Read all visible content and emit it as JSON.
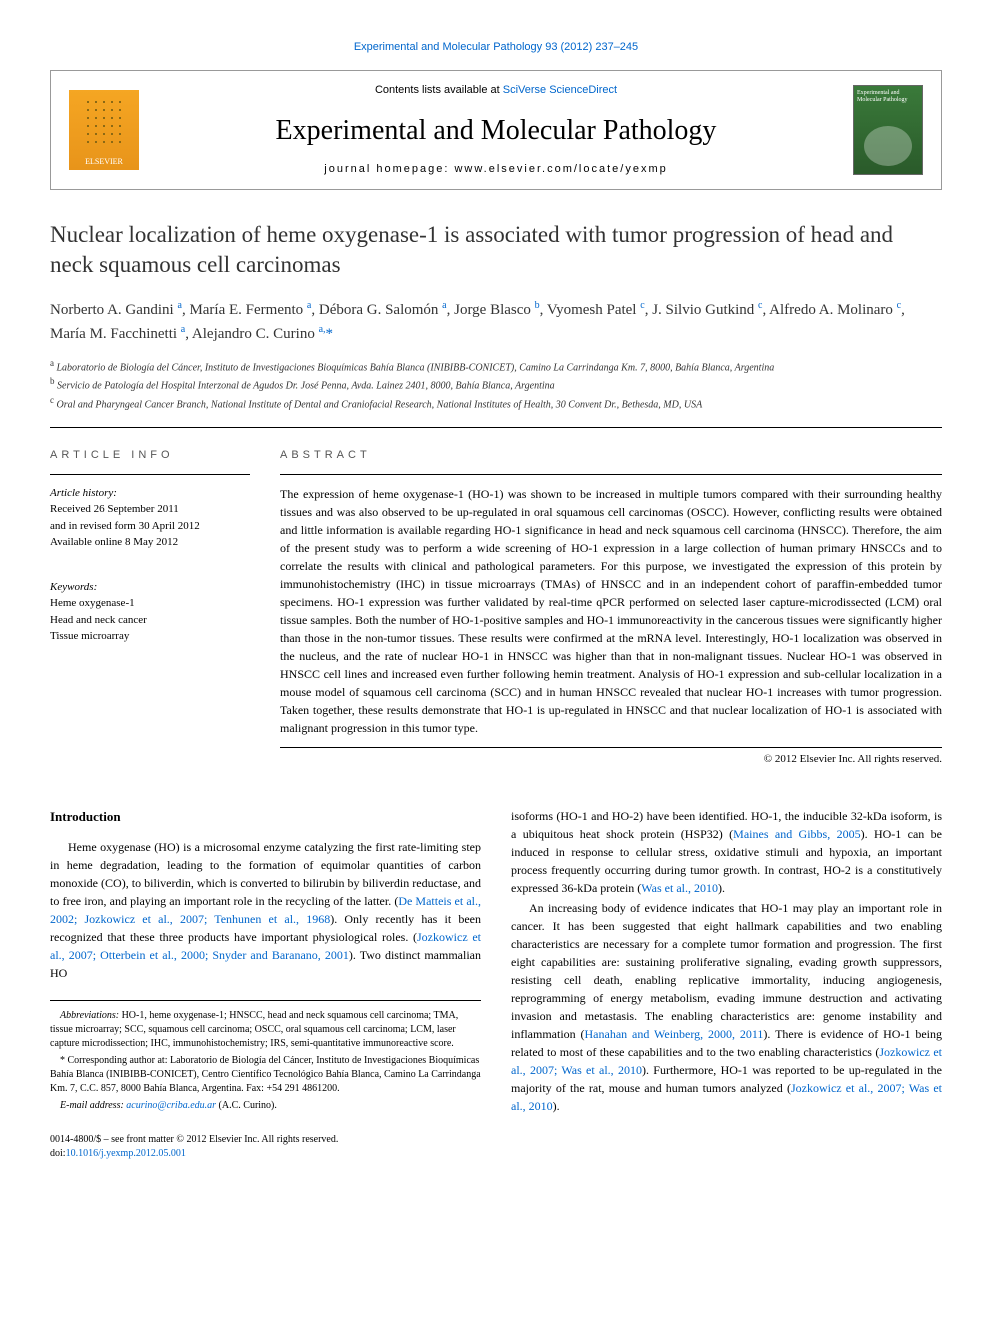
{
  "top_link": "Experimental and Molecular Pathology 93 (2012) 237–245",
  "header": {
    "contents_prefix": "Contents lists available at ",
    "contents_link": "SciVerse ScienceDirect",
    "journal_title": "Experimental and Molecular Pathology",
    "homepage_label": "journal homepage: ",
    "homepage_url": "www.elsevier.com/locate/yexmp",
    "elsevier_label": "ELSEVIER"
  },
  "article": {
    "title": "Nuclear localization of heme oxygenase-1 is associated with tumor progression of head and neck squamous cell carcinomas",
    "authors_html": "Norberto A. Gandini <sup>a</sup>, María E. Fermento <sup>a</sup>, Débora G. Salomón <sup>a</sup>, Jorge Blasco <sup>b</sup>, Vyomesh Patel <sup>c</sup>, J. Silvio Gutkind <sup>c</sup>, Alfredo A. Molinaro <sup>c</sup>, María M. Facchinetti <sup>a</sup>, Alejandro C. Curino <sup>a,</sup><span class='corr'>*</span>",
    "affiliations": [
      "a Laboratorio de Biología del Cáncer, Instituto de Investigaciones Bioquímicas Bahía Blanca (INIBIBB-CONICET), Camino La Carrindanga Km. 7, 8000, Bahía Blanca, Argentina",
      "b Servicio de Patología del Hospital Interzonal de Agudos Dr. José Penna, Avda. Lainez 2401, 8000, Bahía Blanca, Argentina",
      "c Oral and Pharyngeal Cancer Branch, National Institute of Dental and Craniofacial Research, National Institutes of Health, 30 Convent Dr., Bethesda, MD, USA"
    ]
  },
  "info": {
    "header": "article info",
    "history_label": "Article history:",
    "received": "Received 26 September 2011",
    "revised": "and in revised form 30 April 2012",
    "online": "Available online 8 May 2012",
    "keywords_label": "Keywords:",
    "keywords": [
      "Heme oxygenase-1",
      "Head and neck cancer",
      "Tissue microarray"
    ]
  },
  "abstract": {
    "header": "abstract",
    "text": "The expression of heme oxygenase-1 (HO-1) was shown to be increased in multiple tumors compared with their surrounding healthy tissues and was also observed to be up-regulated in oral squamous cell carcinomas (OSCC). However, conflicting results were obtained and little information is available regarding HO-1 significance in head and neck squamous cell carcinoma (HNSCC). Therefore, the aim of the present study was to perform a wide screening of HO-1 expression in a large collection of human primary HNSCCs and to correlate the results with clinical and pathological parameters. For this purpose, we investigated the expression of this protein by immunohistochemistry (IHC) in tissue microarrays (TMAs) of HNSCC and in an independent cohort of paraffin-embedded tumor specimens. HO-1 expression was further validated by real-time qPCR performed on selected laser capture-microdissected (LCM) oral tissue samples. Both the number of HO-1-positive samples and HO-1 immunoreactivity in the cancerous tissues were significantly higher than those in the non-tumor tissues. These results were confirmed at the mRNA level. Interestingly, HO-1 localization was observed in the nucleus, and the rate of nuclear HO-1 in HNSCC was higher than that in non-malignant tissues. Nuclear HO-1 was observed in HNSCC cell lines and increased even further following hemin treatment. Analysis of HO-1 expression and sub-cellular localization in a mouse model of squamous cell carcinoma (SCC) and in human HNSCC revealed that nuclear HO-1 increases with tumor progression. Taken together, these results demonstrate that HO-1 is up-regulated in HNSCC and that nuclear localization of HO-1 is associated with malignant progression in this tumor type.",
    "copyright": "© 2012 Elsevier Inc. All rights reserved."
  },
  "body": {
    "intro_heading": "Introduction",
    "col1_p1_pre": "Heme oxygenase (HO) is a microsomal enzyme catalyzing the first rate-limiting step in heme degradation, leading to the formation of equimolar quantities of carbon monoxide (CO), to biliverdin, which is converted to bilirubin by biliverdin reductase, and to free iron, and playing an important role in the recycling of the latter. (",
    "col1_p1_ref1": "De Matteis et al., 2002; Jozkowicz et al., 2007; Tenhunen et al., 1968",
    "col1_p1_mid": "). Only recently has it been recognized that these three products have important physiological roles. (",
    "col1_p1_ref2": "Jozkowicz et al., 2007; Otterbein et al., 2000; Snyder and Baranano, 2001",
    "col1_p1_post": "). Two distinct mammalian HO",
    "col2_p1_pre": "isoforms (HO-1 and HO-2) have been identified. HO-1, the inducible 32-kDa isoform, is a ubiquitous heat shock protein (HSP32) (",
    "col2_p1_ref1": "Maines and Gibbs, 2005",
    "col2_p1_mid": "). HO-1 can be induced in response to cellular stress, oxidative stimuli and hypoxia, an important process frequently occurring during tumor growth. In contrast, HO-2 is a constitutively expressed 36-kDa protein (",
    "col2_p1_ref2": "Was et al., 2010",
    "col2_p1_post": ").",
    "col2_p2_pre": "An increasing body of evidence indicates that HO-1 may play an important role in cancer. It has been suggested that eight hallmark capabilities and two enabling characteristics are necessary for a complete tumor formation and progression. The first eight capabilities are: sustaining proliferative signaling, evading growth suppressors, resisting cell death, enabling replicative immortality, inducing angiogenesis, reprogramming of energy metabolism, evading immune destruction and activating invasion and metastasis. The enabling characteristics are: genome instability and inflammation (",
    "col2_p2_ref1": "Hanahan and Weinberg, 2000, 2011",
    "col2_p2_mid": "). There is evidence of HO-1 being related to most of these capabilities and to the two enabling characteristics (",
    "col2_p2_ref2": "Jozkowicz et al., 2007; Was et al., 2010",
    "col2_p2_mid2": "). Furthermore, HO-1 was reported to be up-regulated in the majority of the rat, mouse and human tumors analyzed (",
    "col2_p2_ref3": "Jozkowicz et al., 2007; Was et al., 2010",
    "col2_p2_post": ")."
  },
  "footnotes": {
    "abbrev_label": "Abbreviations:",
    "abbrev_text": " HO-1, heme oxygenase-1; HNSCC, head and neck squamous cell carcinoma; TMA, tissue microarray; SCC, squamous cell carcinoma; OSCC, oral squamous cell carcinoma; LCM, laser capture microdissection; IHC, immunohistochemistry; IRS, semi-quantitative immunoreactive score.",
    "corr_marker": "*",
    "corr_text": " Corresponding author at: Laboratorio de Biología del Cáncer, Instituto de Investigaciones Bioquímicas Bahía Blanca (INIBIBB-CONICET), Centro Científico Tecnológico Bahía Blanca, Camino La Carrindanga Km. 7, C.C. 857, 8000 Bahía Blanca, Argentina. Fax: +54 291 4861200.",
    "email_label": "E-mail address:",
    "email": "acurino@criba.edu.ar",
    "email_post": " (A.C. Curino)."
  },
  "bottom": {
    "issn": "0014-4800/$ – see front matter © 2012 Elsevier Inc. All rights reserved.",
    "doi_label": "doi:",
    "doi": "10.1016/j.yexmp.2012.05.001"
  },
  "colors": {
    "link": "#0066cc",
    "text": "#000000",
    "border": "#999999"
  }
}
